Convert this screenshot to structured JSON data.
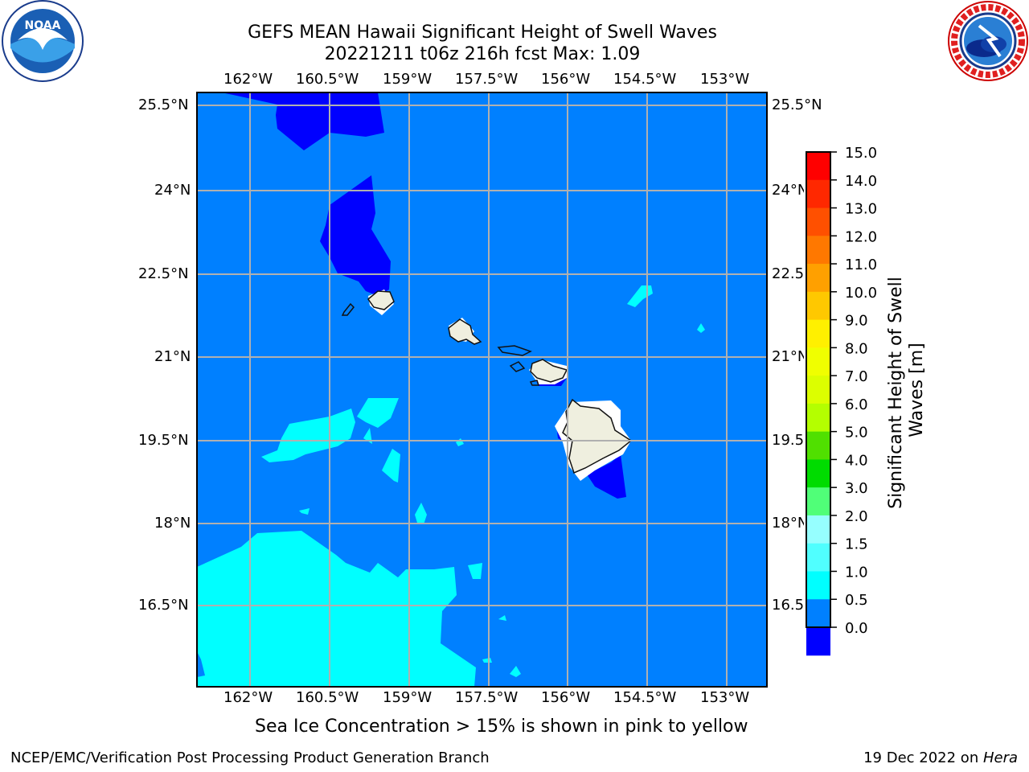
{
  "title": {
    "line1": "GEFS MEAN Hawaii Significant Height of Swell Waves",
    "line2": "20221211 t06z 216h fcst   Max: 1.09"
  },
  "logos": {
    "left": {
      "icon": "noaa-logo",
      "text": "NOAA",
      "ring_text": "NATIONAL OCEANIC AND ATMOSPHERIC ADMINISTRATION · U.S. DEPARTMENT OF COMMERCE"
    },
    "right": {
      "icon": "nws-logo",
      "ring_text": "NATIONAL WEATHER SERVICE"
    }
  },
  "map": {
    "lon_labels": [
      "162°W",
      "160.5°W",
      "159°W",
      "157.5°W",
      "156°W",
      "154.5°W",
      "153°W"
    ],
    "lat_labels": [
      "25.5°N",
      "24°N",
      "22.5°N",
      "21°N",
      "19.5°N",
      "18°N",
      "16.5°N"
    ],
    "lat_labels_right": [
      "25.5°N",
      "24°N",
      "22.5",
      "21°N",
      "19.5",
      "18°N",
      "16.5"
    ],
    "ocean_color": "#0080ff",
    "low_color": "#0000ff",
    "mid_color": "#00ffff",
    "land_color": "#efefdf"
  },
  "colorbar": {
    "label": "Significant Height of Swell Waves [m]",
    "ticks": [
      "15.0",
      "14.0",
      "13.0",
      "12.0",
      "11.0",
      "10.0",
      "9.0",
      "8.0",
      "7.0",
      "6.0",
      "5.0",
      "4.0",
      "3.0",
      "2.0",
      "1.5",
      "1.0",
      "0.5",
      "0.0"
    ],
    "colors": [
      "#ff0000",
      "#ff2800",
      "#ff5000",
      "#ff7800",
      "#ffa000",
      "#ffc800",
      "#fff000",
      "#f0ff00",
      "#dcff00",
      "#b4ff00",
      "#50e000",
      "#00dc00",
      "#50ff78",
      "#96ffff",
      "#50ffff",
      "#00ffff",
      "#0080ff",
      "#0000ff"
    ]
  },
  "footer": {
    "note": "Sea Ice Concentration > 15% is shown in pink to yellow",
    "left": "NCEP/EMC/Verification Post Processing Product Generation Branch",
    "right_date": "19 Dec 2022 on ",
    "right_host": "Hera"
  }
}
